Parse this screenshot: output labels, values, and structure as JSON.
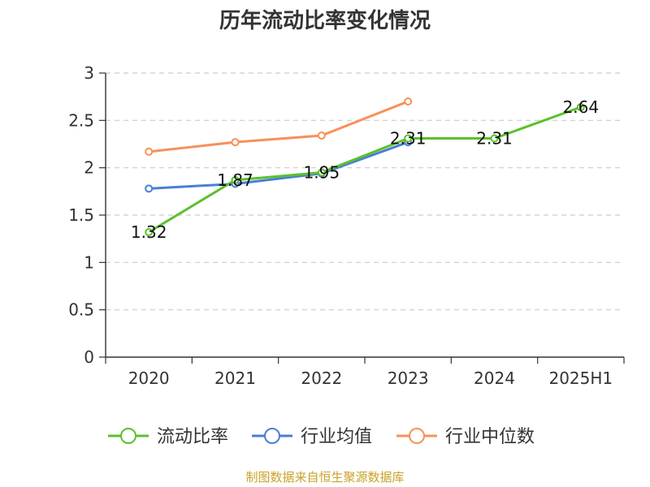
{
  "chart_data": {
    "type": "line",
    "title": "历年流动比率变化情况",
    "categories": [
      "2020",
      "2021",
      "2022",
      "2023",
      "2024",
      "2025H1"
    ],
    "ylim": [
      0,
      3
    ],
    "yticks": [
      "0",
      "0.5",
      "1",
      "1.5",
      "2",
      "2.5",
      "3"
    ],
    "grid": true,
    "legend_position": "bottom",
    "series": [
      {
        "name": "流动比率",
        "color": "#5cc02c",
        "values": [
          1.32,
          1.87,
          1.95,
          2.31,
          2.31,
          2.64
        ],
        "labels": [
          "1.32",
          "1.87",
          "1.95",
          "2.31",
          "2.31",
          "2.64"
        ]
      },
      {
        "name": "行业均值",
        "color": "#4a7fd6",
        "values": [
          1.78,
          1.83,
          1.94,
          2.27,
          null,
          null
        ]
      },
      {
        "name": "行业中位数",
        "color": "#f79159",
        "values": [
          2.17,
          2.27,
          2.34,
          2.7,
          null,
          null
        ]
      }
    ],
    "source": "制图数据来自恒生聚源数据库"
  }
}
